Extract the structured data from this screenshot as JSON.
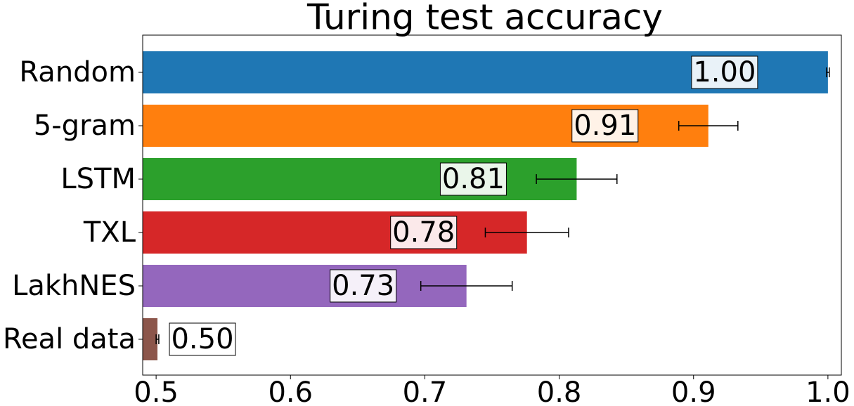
{
  "chart_data": {
    "type": "barh",
    "title": "Turing test accuracy",
    "categories": [
      "Random",
      "5-gram",
      "LSTM",
      "TXL",
      "LakhNES",
      "Real data"
    ],
    "values": [
      1.0,
      0.911,
      0.813,
      0.776,
      0.731,
      0.501
    ],
    "value_labels": [
      "1.00",
      "0.91",
      "0.81",
      "0.78",
      "0.73",
      "0.50"
    ],
    "errors": [
      0.001,
      0.022,
      0.03,
      0.031,
      0.034,
      0.001
    ],
    "colors": [
      "#1f77b4",
      "#ff7f0e",
      "#2ca02c",
      "#d62728",
      "#9467bd",
      "#8c564b"
    ],
    "xlim": [
      0.49,
      1.01
    ],
    "xticks": [
      0.5,
      0.6,
      0.7,
      0.8,
      0.9,
      {
        "value": 1,
        "label": "1.0"
      }
    ]
  }
}
